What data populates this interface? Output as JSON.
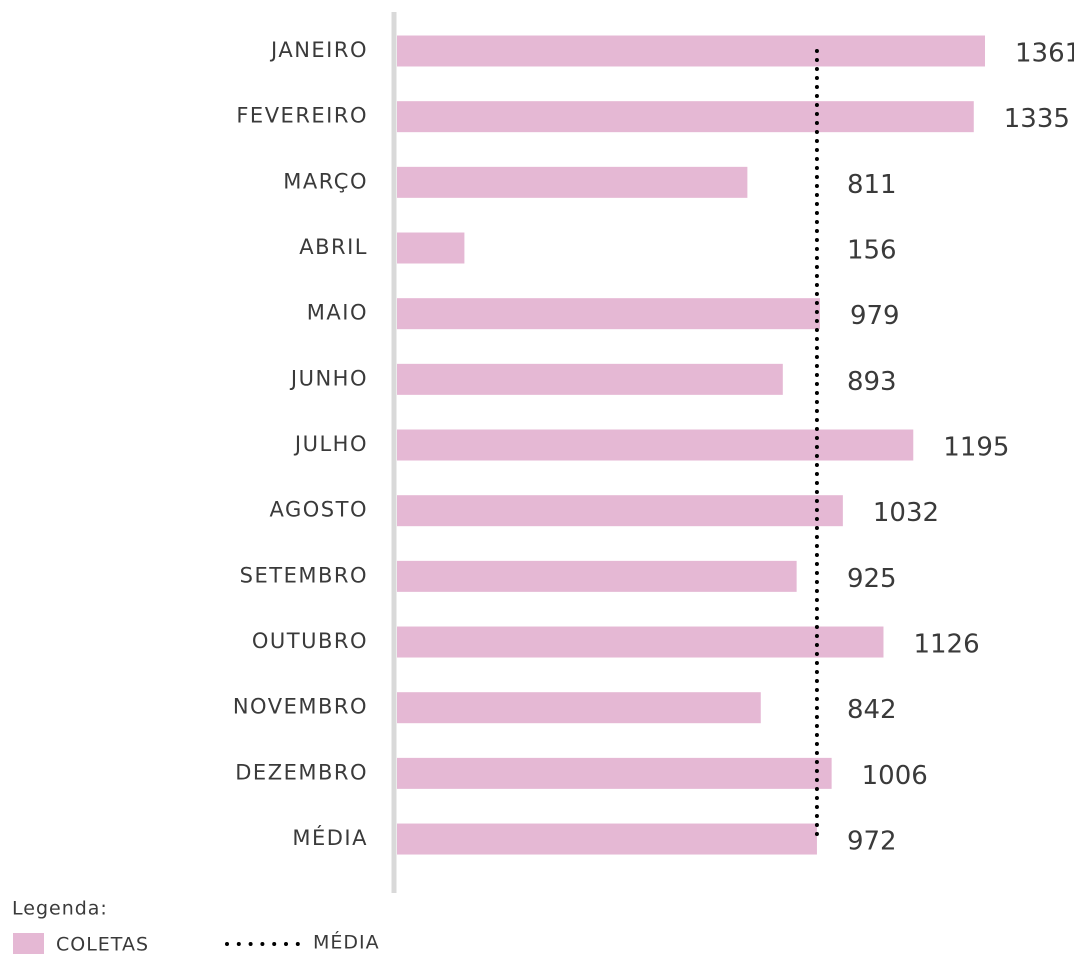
{
  "chart_data": {
    "type": "bar",
    "orientation": "horizontal",
    "categories": [
      "JANEIRO",
      "FEVEREIRO",
      "MARÇO",
      "ABRIL",
      "MAIO",
      "JUNHO",
      "JULHO",
      "AGOSTO",
      "SETEMBRO",
      "OUTUBRO",
      "NOVEMBRO",
      "DEZEMBRO",
      "MÉDIA"
    ],
    "series": [
      {
        "name": "COLETAS",
        "color": "#e5b8d4",
        "values": [
          1361,
          1335,
          811,
          156,
          979,
          893,
          1195,
          1032,
          925,
          1126,
          842,
          1006,
          972
        ]
      }
    ],
    "reference_line": {
      "name": "MÉDIA",
      "value": 972,
      "color": "#000000",
      "style": "dotted"
    },
    "legend_title": "Legenda:"
  }
}
